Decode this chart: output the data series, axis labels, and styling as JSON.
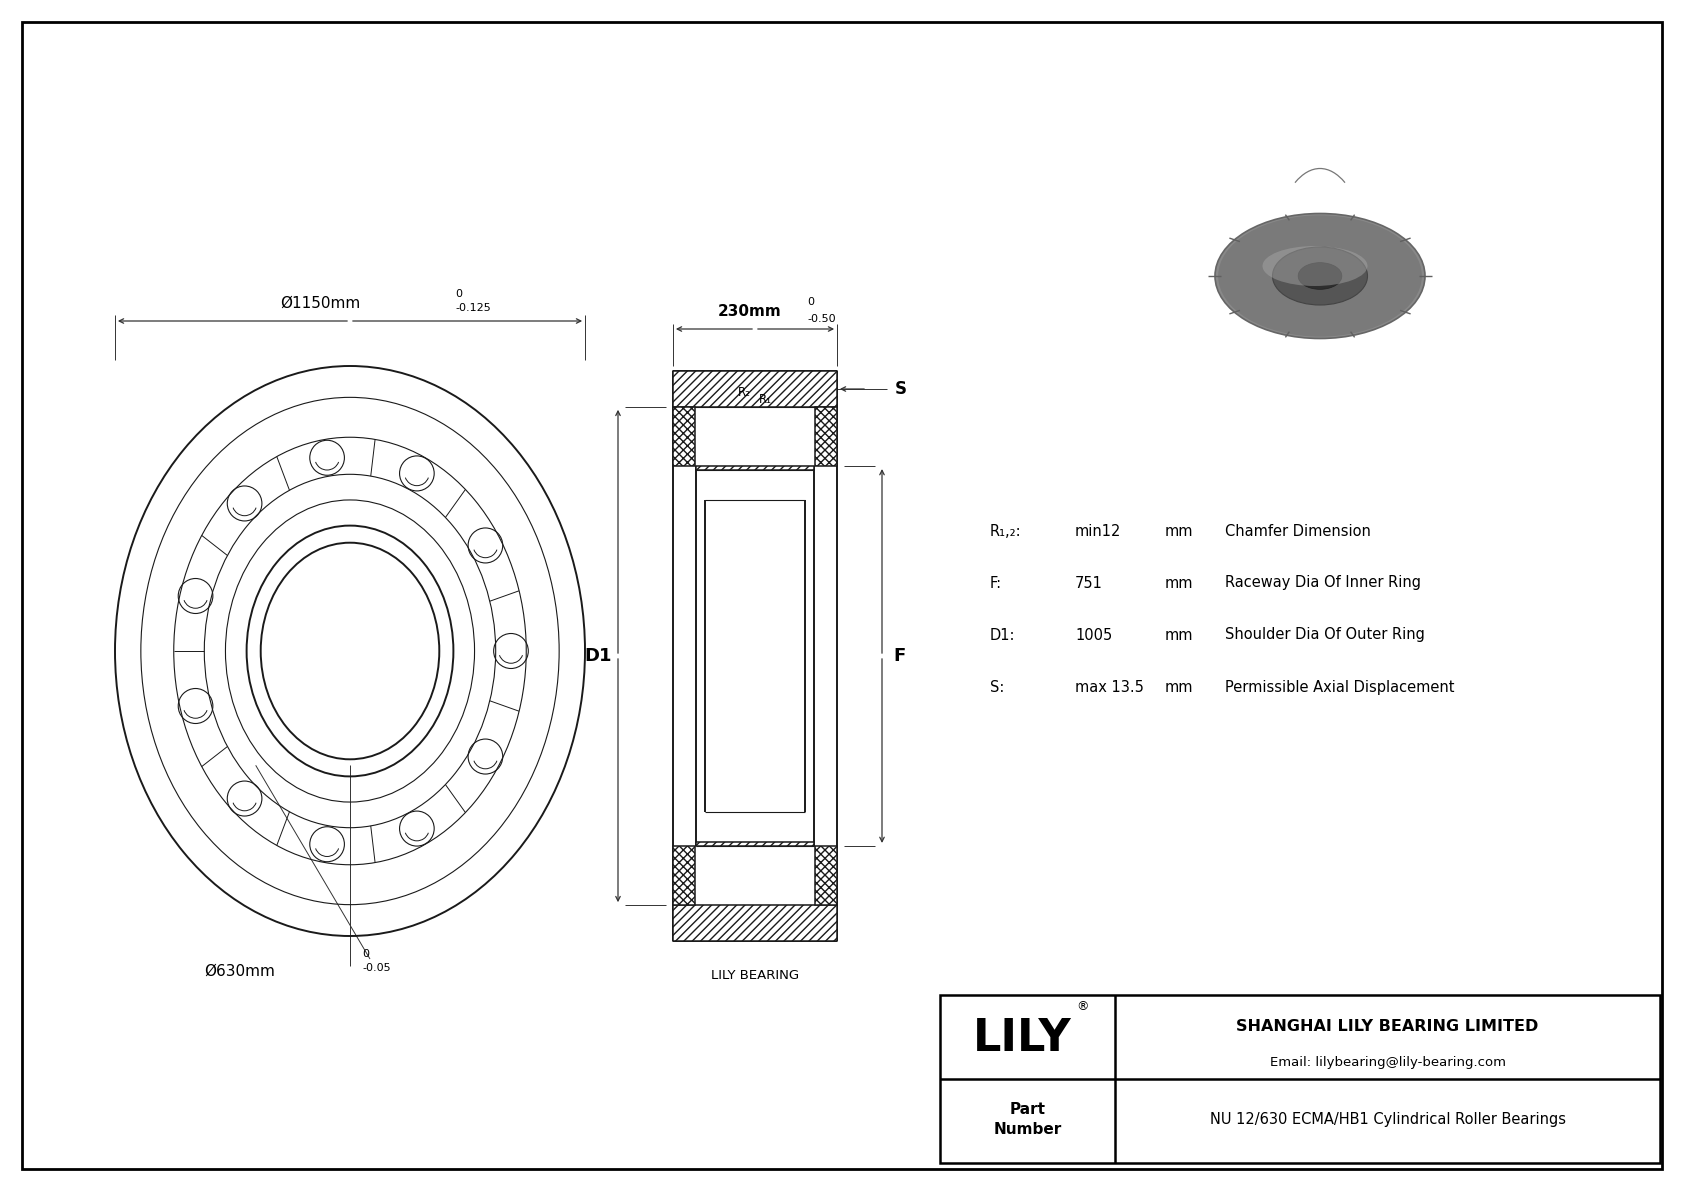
{
  "bg_color": "#ffffff",
  "line_color": "#1a1a1a",
  "dim_color": "#333333",
  "dim_outer": "Ø1150mm",
  "dim_outer_tol_top": "0",
  "dim_outer_tol_bot": "-0.125",
  "dim_inner": "Ø630mm",
  "dim_inner_tol_top": "0",
  "dim_inner_tol_bot": "-0.05",
  "dim_width": "230mm",
  "dim_width_tol_top": "0",
  "dim_width_tol_bot": "-0.50",
  "label_D1": "D1",
  "label_F": "F",
  "label_S": "S",
  "label_R1": "R₁",
  "label_R2": "R₂",
  "lily_bearing_label": "LILY BEARING",
  "specs": [
    {
      "symbol": "R₁,₂:",
      "value": "min12",
      "unit": "mm",
      "desc": "Chamfer Dimension"
    },
    {
      "symbol": "F:",
      "value": "751",
      "unit": "mm",
      "desc": "Raceway Dia Of Inner Ring"
    },
    {
      "symbol": "D1:",
      "value": "1005",
      "unit": "mm",
      "desc": "Shoulder Dia Of Outer Ring"
    },
    {
      "symbol": "S:",
      "value": "max 13.5",
      "unit": "mm",
      "desc": "Permissible Axial Displacement"
    }
  ],
  "company_name": "SHANGHAI LILY BEARING LIMITED",
  "company_email": "Email: lilybearing@lily-bearing.com",
  "part_number": "NU 12/630 ECMA/HB1 Cylindrical Roller Bearings",
  "lily_text": "LILY"
}
